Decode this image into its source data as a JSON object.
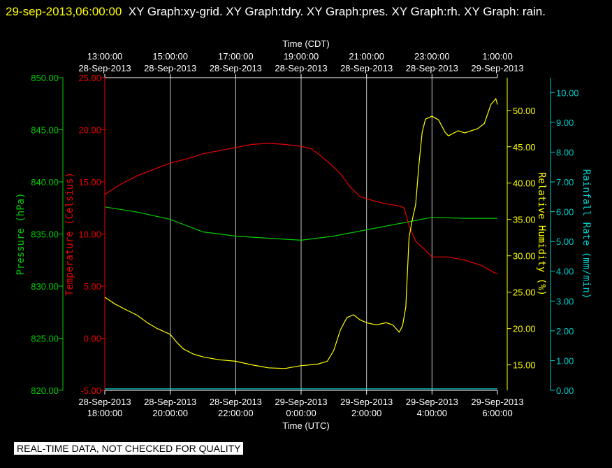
{
  "header": {
    "timestamp": "29-sep-2013,06:00:00",
    "graphs": "XY Graph:xy-grid.  XY Graph:tdry.  XY Graph:pres.  XY Graph:rh.  XY Graph: rain."
  },
  "footer": {
    "qc_note": "REAL-TIME DATA, NOT CHECKED FOR QUALITY"
  },
  "colors": {
    "pressure": "#00cc00",
    "temperature": "#ee0000",
    "humidity": "#ffff00",
    "rain": "#00cccc",
    "grid": "#c8c8c8",
    "axis_text": "#ffffff"
  },
  "chart_data": {
    "type": "line",
    "grid": true,
    "x_bottom": {
      "label": "Time (UTC)",
      "ticks": [
        {
          "x": 18,
          "line1": "28-Sep-2013",
          "line2": "18:00:00"
        },
        {
          "x": 20,
          "line1": "28-Sep-2013",
          "line2": "20:00:00"
        },
        {
          "x": 22,
          "line1": "28-Sep-2013",
          "line2": "22:00:00"
        },
        {
          "x": 24,
          "line1": "29-Sep-2013",
          "line2": "0:00:00"
        },
        {
          "x": 26,
          "line1": "29-Sep-2013",
          "line2": "2:00:00"
        },
        {
          "x": 28,
          "line1": "29-Sep-2013",
          "line2": "4:00:00"
        },
        {
          "x": 30,
          "line1": "29-Sep-2013",
          "line2": "6:00:00"
        }
      ],
      "range": [
        18,
        30
      ]
    },
    "x_top": {
      "label": "Time (CDT)",
      "ticks": [
        {
          "x": 18,
          "line1": "13:00:00",
          "line2": "28-Sep-2013"
        },
        {
          "x": 20,
          "line1": "15:00:00",
          "line2": "28-Sep-2013"
        },
        {
          "x": 22,
          "line1": "17:00:00",
          "line2": "28-Sep-2013"
        },
        {
          "x": 24,
          "line1": "19:00:00",
          "line2": "28-Sep-2013"
        },
        {
          "x": 26,
          "line1": "21:00:00",
          "line2": "28-Sep-2013"
        },
        {
          "x": 28,
          "line1": "23:00:00",
          "line2": "28-Sep-2013"
        },
        {
          "x": 30,
          "line1": "1:00:00",
          "line2": "29-Sep-2013"
        }
      ]
    },
    "axes": {
      "pressure": {
        "label": "Pressure (hPa)",
        "range": [
          820,
          850
        ],
        "ticks": [
          "820.00",
          "825.00",
          "830.00",
          "835.00",
          "840.00",
          "845.00",
          "850.00"
        ]
      },
      "temperature": {
        "label": "Temperature (Celsius)",
        "range": [
          -5,
          25
        ],
        "ticks": [
          "-5.00",
          "0.00",
          "5.00",
          "10.00",
          "15.00",
          "20.00",
          "25.00"
        ]
      },
      "humidity": {
        "label": "Relative Humidity (%)",
        "range": [
          11.5,
          54.5
        ],
        "ticks": [
          "15.00",
          "20.00",
          "25.00",
          "30.00",
          "35.00",
          "40.00",
          "45.00",
          "50.00"
        ]
      },
      "rain": {
        "label": "Rainfall Rate (mm/min)",
        "range": [
          0,
          10.5
        ],
        "ticks": [
          "0.00",
          "1.00",
          "2.00",
          "3.00",
          "4.00",
          "5.00",
          "6.00",
          "7.00",
          "8.00",
          "9.00",
          "10.00"
        ]
      }
    },
    "series": [
      {
        "name": "pres",
        "axis": "pressure",
        "points": [
          [
            18,
            837.6
          ],
          [
            19,
            837.1
          ],
          [
            20,
            836.4
          ],
          [
            21,
            835.2
          ],
          [
            22,
            834.8
          ],
          [
            23,
            834.6
          ],
          [
            24,
            834.4
          ],
          [
            25,
            834.8
          ],
          [
            26,
            835.4
          ],
          [
            27,
            836.0
          ],
          [
            28,
            836.6
          ],
          [
            29,
            836.5
          ],
          [
            30,
            836.5
          ]
        ]
      },
      {
        "name": "tdry",
        "axis": "temperature",
        "points": [
          [
            18,
            13.8
          ],
          [
            18.5,
            14.8
          ],
          [
            19,
            15.6
          ],
          [
            19.5,
            16.2
          ],
          [
            20,
            16.8
          ],
          [
            20.5,
            17.2
          ],
          [
            21,
            17.7
          ],
          [
            21.5,
            18.0
          ],
          [
            22,
            18.3
          ],
          [
            22.5,
            18.6
          ],
          [
            23,
            18.7
          ],
          [
            23.5,
            18.6
          ],
          [
            24,
            18.4
          ],
          [
            24.3,
            18.2
          ],
          [
            24.6,
            17.5
          ],
          [
            24.9,
            16.7
          ],
          [
            25.2,
            15.8
          ],
          [
            25.5,
            14.5
          ],
          [
            25.8,
            13.6
          ],
          [
            26.2,
            13.2
          ],
          [
            26.6,
            12.9
          ],
          [
            27,
            12.7
          ],
          [
            27.15,
            12.5
          ],
          [
            27.3,
            10.8
          ],
          [
            27.5,
            9.3
          ],
          [
            27.75,
            8.6
          ],
          [
            28,
            7.8
          ],
          [
            28.5,
            7.8
          ],
          [
            29,
            7.5
          ],
          [
            29.5,
            7.0
          ],
          [
            29.9,
            6.3
          ],
          [
            30,
            6.2
          ]
        ]
      },
      {
        "name": "rh",
        "axis": "humidity",
        "points": [
          [
            18,
            24.3
          ],
          [
            18.3,
            23.4
          ],
          [
            18.6,
            22.7
          ],
          [
            19,
            21.8
          ],
          [
            19.3,
            20.8
          ],
          [
            19.6,
            20.0
          ],
          [
            20,
            19.2
          ],
          [
            20.2,
            18.1
          ],
          [
            20.4,
            17.2
          ],
          [
            20.7,
            16.5
          ],
          [
            21,
            16.1
          ],
          [
            21.5,
            15.7
          ],
          [
            22,
            15.5
          ],
          [
            22.5,
            15.0
          ],
          [
            23,
            14.6
          ],
          [
            23.5,
            14.5
          ],
          [
            24,
            14.9
          ],
          [
            24.5,
            15.1
          ],
          [
            24.8,
            15.5
          ],
          [
            25,
            17.0
          ],
          [
            25.2,
            19.8
          ],
          [
            25.4,
            21.5
          ],
          [
            25.6,
            21.9
          ],
          [
            25.8,
            21.2
          ],
          [
            26,
            20.8
          ],
          [
            26.3,
            20.5
          ],
          [
            26.6,
            20.8
          ],
          [
            26.8,
            20.5
          ],
          [
            27,
            19.5
          ],
          [
            27.1,
            20.4
          ],
          [
            27.2,
            23.0
          ],
          [
            27.3,
            32.5
          ],
          [
            27.4,
            35.0
          ],
          [
            27.5,
            37.0
          ],
          [
            27.6,
            42.5
          ],
          [
            27.7,
            47.0
          ],
          [
            27.8,
            48.8
          ],
          [
            28,
            49.2
          ],
          [
            28.2,
            48.7
          ],
          [
            28.4,
            47.0
          ],
          [
            28.5,
            46.5
          ],
          [
            28.8,
            47.2
          ],
          [
            29,
            46.9
          ],
          [
            29.4,
            47.5
          ],
          [
            29.6,
            48.2
          ],
          [
            29.8,
            50.8
          ],
          [
            29.95,
            51.6
          ],
          [
            30,
            50.8
          ]
        ]
      },
      {
        "name": "rain",
        "axis": "rain",
        "points": [
          [
            18,
            0.05
          ],
          [
            30,
            0.05
          ]
        ]
      }
    ]
  }
}
